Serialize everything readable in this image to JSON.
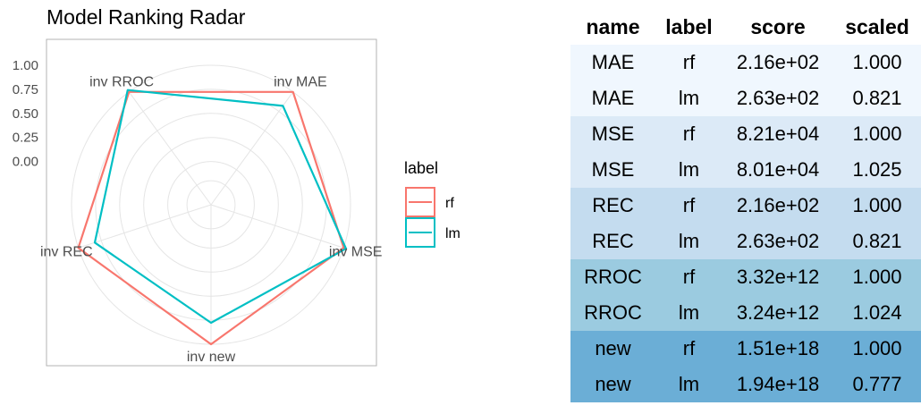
{
  "chart_data": {
    "type": "radar",
    "title": "Model Ranking Radar",
    "axes": [
      "inv MAE",
      "inv MSE",
      "inv new",
      "inv REC",
      "inv RROC"
    ],
    "radial_ticks": [
      "0.00",
      "0.25",
      "0.50",
      "0.75",
      "1.00"
    ],
    "rlim": [
      -0.45,
      1.0
    ],
    "legend": {
      "title": "label",
      "position": "right"
    },
    "series": [
      {
        "name": "rf",
        "color": "#F8766D",
        "values": [
          1.0,
          1.0,
          1.0,
          1.0,
          1.0
        ]
      },
      {
        "name": "lm",
        "color": "#00BFC4",
        "values": [
          0.821,
          1.025,
          0.777,
          0.821,
          1.024
        ]
      }
    ]
  },
  "table": {
    "headers": [
      "name",
      "label",
      "score",
      "scaled"
    ],
    "rows": [
      {
        "cells": [
          "MAE",
          "rf",
          "2.16e+02",
          "1.000"
        ],
        "color": "#F0F7FE"
      },
      {
        "cells": [
          "MAE",
          "lm",
          "2.63e+02",
          "0.821"
        ],
        "color": "#F0F7FE"
      },
      {
        "cells": [
          "MSE",
          "rf",
          "8.21e+04",
          "1.000"
        ],
        "color": "#DCEAF7"
      },
      {
        "cells": [
          "MSE",
          "lm",
          "8.01e+04",
          "1.025"
        ],
        "color": "#DCEAF7"
      },
      {
        "cells": [
          "REC",
          "rf",
          "2.16e+02",
          "1.000"
        ],
        "color": "#C4DCEF"
      },
      {
        "cells": [
          "REC",
          "lm",
          "2.63e+02",
          "0.821"
        ],
        "color": "#C4DCEF"
      },
      {
        "cells": [
          "RROC",
          "rf",
          "3.32e+12",
          "1.000"
        ],
        "color": "#9BCBE0"
      },
      {
        "cells": [
          "RROC",
          "lm",
          "3.24e+12",
          "1.024"
        ],
        "color": "#9BCBE0"
      },
      {
        "cells": [
          "new",
          "rf",
          "1.51e+18",
          "1.000"
        ],
        "color": "#6BAED6"
      },
      {
        "cells": [
          "new",
          "lm",
          "1.94e+18",
          "0.777"
        ],
        "color": "#6BAED6"
      }
    ]
  }
}
